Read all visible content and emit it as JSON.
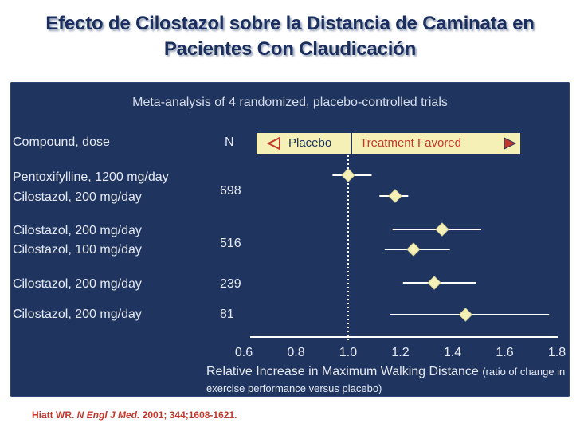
{
  "title": {
    "line1": "Efecto de Cilostazol sobre la Distancia  de Caminata en",
    "line2": "Pacientes Con Claudicación"
  },
  "subtitle": "Meta-analysis of 4 randomized, placebo-controlled trials",
  "headers": {
    "compound": "Compound, dose",
    "n": "N",
    "placebo": "Placebo",
    "treatment": "Treatment  Favored"
  },
  "rows": [
    {
      "label": "Pentoxifylline, 1200 mg/day"
    },
    {
      "label": "Cilostazol, 200 mg/day"
    },
    {
      "label": "Cilostazol, 200 mg/day"
    },
    {
      "label": "Cilostazol, 100 mg/day"
    },
    {
      "label": "Cilostazol, 200 mg/day"
    },
    {
      "label": "Cilostazol, 200 mg/day"
    }
  ],
  "n_values": [
    "698",
    "516",
    "239",
    "81"
  ],
  "citation": {
    "author": "Hiatt WR. ",
    "journal": "N Engl J Med.",
    "details": " 2001; 344;1608-1621."
  },
  "colors": {
    "panel": "#1f3560",
    "point": "#f4f0b6",
    "line": "#ffffff",
    "arrow": "#c0392b"
  },
  "chart_data": {
    "type": "forest",
    "xlabel": "Relative Increase in Maximum Walking Distance",
    "xlabel_note": "(ratio of change in exercise performance versus placebo)",
    "xlim": [
      0.6,
      1.8
    ],
    "ticks": [
      "0.6",
      "0.8",
      "1.0",
      "1.2",
      "1.4",
      "1.6",
      "1.8"
    ],
    "reference_line": 1.0,
    "points": [
      {
        "label": "Pentoxifylline, 1200 mg/day",
        "estimate": 1.0,
        "lower": 0.94,
        "upper": 1.09
      },
      {
        "label": "Cilostazol, 200 mg/day",
        "estimate": 1.18,
        "lower": 1.12,
        "upper": 1.23
      },
      {
        "label": "Cilostazol, 200 mg/day",
        "estimate": 1.36,
        "lower": 1.17,
        "upper": 1.51
      },
      {
        "label": "Cilostazol, 100 mg/day",
        "estimate": 1.25,
        "lower": 1.14,
        "upper": 1.39
      },
      {
        "label": "Cilostazol, 200 mg/day",
        "estimate": 1.33,
        "lower": 1.21,
        "upper": 1.49
      },
      {
        "label": "Cilostazol, 200 mg/day",
        "estimate": 1.45,
        "lower": 1.16,
        "upper": 1.77
      }
    ]
  }
}
